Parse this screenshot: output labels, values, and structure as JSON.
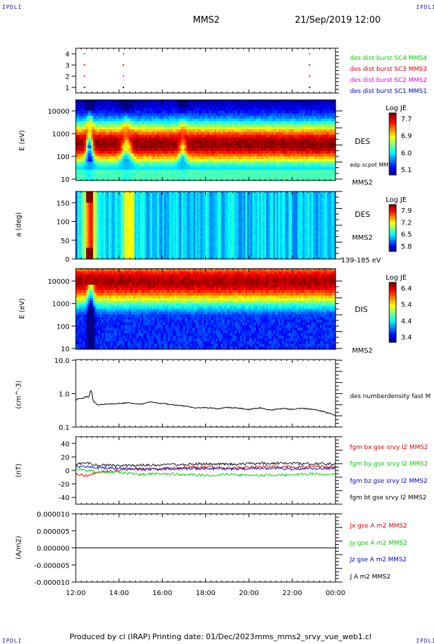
{
  "corners": [
    "IPDLI",
    "IPDLI",
    "IPDLI",
    "IPDLI"
  ],
  "header": {
    "spacecraft": "MMS2",
    "datetime": "21/Sep/2019 12:00"
  },
  "footer": {
    "produced_by": "Produced by cl (IRAP)",
    "printing_date": "Printing date: 01/Dec/2023",
    "filename": "mms_mms2_srvy_vue_web1.cl"
  },
  "colors": {
    "blue": "#0000cc",
    "magenta": "#e000e0",
    "red": "#dd0000",
    "green": "#00cc00",
    "black": "#000000"
  },
  "chart_data": [
    {
      "type": "scatter",
      "panel": "burst-availability",
      "y_ticks": [
        "4",
        "3",
        "2",
        "1"
      ],
      "ylim": [
        0.5,
        4.5
      ],
      "series": [
        {
          "name": "des dist burst SC1 MMS1",
          "color": "#0000cc",
          "y": 1,
          "x_hours": [
            12.4,
            14.2,
            22.8
          ]
        },
        {
          "name": "des dist burst SC2 MMS2",
          "color": "#e000e0",
          "y": 2,
          "x_hours": [
            12.4,
            14.2,
            22.8
          ]
        },
        {
          "name": "des dist burst SC3 MMS3",
          "color": "#dd0000",
          "y": 3,
          "x_hours": [
            12.4,
            14.2,
            22.8
          ]
        },
        {
          "name": "des dist burst SC4 MMS4",
          "color": "#00cc00",
          "y": 4,
          "x_hours": [
            12.4,
            14.2,
            22.8
          ]
        }
      ]
    },
    {
      "type": "heatmap",
      "panel": "des-energy-spectrogram",
      "ylabel": "E (eV)",
      "y_ticks": [
        "10000",
        "1000",
        "100",
        "10"
      ],
      "ylim": [
        10,
        30000
      ],
      "log_y": true,
      "label": "DES",
      "spacecraft": "MMS2",
      "overlay": "edp scpot MMS2",
      "colorbar": {
        "title": "Log JE",
        "ticks": [
          "7.7",
          "6.9",
          "6.0",
          "5.1"
        ],
        "range": [
          5.1,
          7.7
        ]
      }
    },
    {
      "type": "heatmap",
      "panel": "des-pitch-angle",
      "ylabel": "a (deg)",
      "y_ticks": [
        "150",
        "100",
        "50",
        "0"
      ],
      "ylim": [
        0,
        180
      ],
      "label": "DES",
      "spacecraft": "MMS2",
      "energy_range": "139-185 eV",
      "colorbar": {
        "title": "Log JE",
        "ticks": [
          "7.9",
          "7.2",
          "6.5",
          "5.8"
        ],
        "range": [
          5.8,
          7.9
        ]
      }
    },
    {
      "type": "heatmap",
      "panel": "dis-energy-spectrogram",
      "ylabel": "E (eV)",
      "y_ticks": [
        "10000",
        "1000",
        "100",
        "10"
      ],
      "ylim": [
        10,
        30000
      ],
      "log_y": true,
      "label": "DIS",
      "spacecraft": "MMS2",
      "colorbar": {
        "title": "Log JE",
        "ticks": [
          "6.4",
          "5.4",
          "4.4",
          "3.4"
        ],
        "range": [
          3.4,
          6.4
        ]
      }
    },
    {
      "type": "line",
      "panel": "density",
      "ylabel": "(cm^-3)",
      "y_ticks": [
        "10.0",
        "1.0",
        "0.1"
      ],
      "ylim": [
        0.1,
        10
      ],
      "log_y": true,
      "series": [
        {
          "name": "des numberdensity fast M",
          "color": "#000000",
          "x_hours": [
            12,
            12.3,
            12.5,
            12.6,
            12.7,
            12.8,
            13,
            13.5,
            14,
            14.5,
            15,
            15.5,
            16,
            16.5,
            17,
            17.5,
            18,
            18.5,
            19,
            19.5,
            20,
            20.5,
            21,
            21.5,
            22,
            22.5,
            23,
            23.5,
            24
          ],
          "values": [
            0.65,
            0.7,
            0.8,
            0.75,
            1.3,
            0.6,
            0.45,
            0.48,
            0.5,
            0.52,
            0.48,
            0.55,
            0.5,
            0.45,
            0.42,
            0.36,
            0.38,
            0.35,
            0.38,
            0.36,
            0.33,
            0.37,
            0.32,
            0.35,
            0.34,
            0.36,
            0.33,
            0.28,
            0.22
          ]
        }
      ]
    },
    {
      "type": "line",
      "panel": "magnetic-field",
      "ylabel": "(nT)",
      "y_ticks": [
        "40",
        "20",
        "0",
        "-20",
        "-40"
      ],
      "ylim": [
        -50,
        50
      ],
      "series": [
        {
          "name": "fgm bx gse srvy l2 MMS2",
          "color": "#dd0000",
          "x_hours": [
            12,
            12.5,
            13,
            14,
            15,
            16,
            17,
            18,
            19,
            20,
            21,
            22,
            23,
            24
          ],
          "values": [
            -5,
            -8,
            -3,
            0,
            2,
            3,
            4,
            5,
            4,
            5,
            6,
            5,
            6,
            5
          ]
        },
        {
          "name": "fgm by gse srvy l2 MMS2",
          "color": "#00cc00",
          "x_hours": [
            12,
            12.5,
            13,
            14,
            15,
            16,
            17,
            18,
            19,
            20,
            21,
            22,
            23,
            24
          ],
          "values": [
            2,
            0,
            -2,
            -3,
            -6,
            -5,
            -6,
            -7,
            -6,
            -7,
            -7,
            -6,
            -5,
            -6
          ]
        },
        {
          "name": "fgm bz gse srvy l2 MMS2",
          "color": "#0000cc",
          "x_hours": [
            12,
            12.5,
            13,
            14,
            15,
            16,
            17,
            18,
            19,
            20,
            21,
            22,
            23,
            24
          ],
          "values": [
            5,
            6,
            4,
            3,
            2,
            2,
            3,
            3,
            2,
            3,
            3,
            2,
            3,
            3
          ]
        },
        {
          "name": "fgm bt gse srvy l2 MMS2",
          "color": "#000000",
          "x_hours": [
            12,
            12.5,
            13,
            14,
            15,
            16,
            17,
            18,
            19,
            20,
            21,
            22,
            23,
            24
          ],
          "values": [
            9,
            11,
            8,
            7,
            8,
            8,
            9,
            10,
            9,
            10,
            11,
            10,
            10,
            10
          ]
        }
      ]
    },
    {
      "type": "line",
      "panel": "current-density",
      "ylabel": "(A/m2)",
      "y_ticks": [
        "0.000010",
        "0.000005",
        "0.000000",
        "-0.000005",
        "-0.000010"
      ],
      "ylim": [
        -1e-05,
        1e-05
      ],
      "series": [
        {
          "name": "Jx gse A m2 MMS2",
          "color": "#dd0000"
        },
        {
          "name": "Jy gse A m2 MMS2",
          "color": "#00cc00"
        },
        {
          "name": "Jz gse A m2 MMS2",
          "color": "#0000cc"
        },
        {
          "name": "J A m2 MMS2",
          "color": "#000000",
          "x_hours": [
            12,
            14,
            16,
            18,
            20,
            22,
            24
          ],
          "values": [
            0,
            0,
            0,
            0,
            0,
            0,
            0
          ]
        }
      ]
    }
  ],
  "x_axis": {
    "ticks": [
      "12:00",
      "14:00",
      "16:00",
      "18:00",
      "20:00",
      "22:00",
      "00:00"
    ],
    "range_hours": [
      12,
      24
    ]
  }
}
